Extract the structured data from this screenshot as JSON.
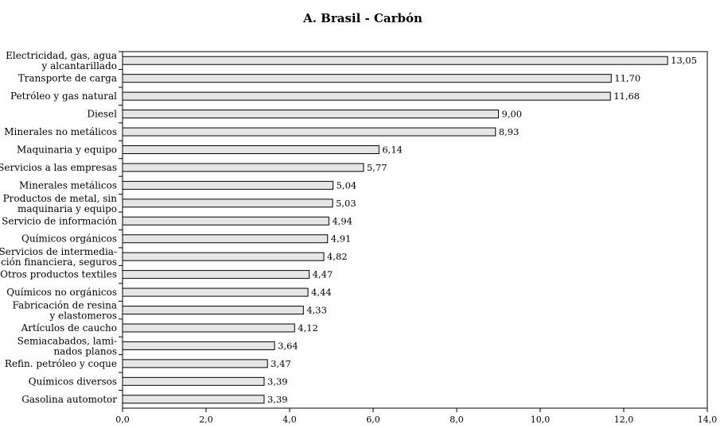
{
  "chart_data": {
    "type": "bar",
    "orientation": "horizontal",
    "title": "A. Brasil - Carbón",
    "xlabel": "",
    "ylabel": "",
    "xlim": [
      0,
      14
    ],
    "grid": false,
    "legend": "none",
    "bar_color": "#e6e6e6",
    "x_ticks": [
      "0,0",
      "2,0",
      "4,0",
      "6,0",
      "8,0",
      "10,0",
      "12,0",
      "14,0"
    ],
    "categories": [
      [
        "Electricidad, gas, agua",
        "y alcantarillado"
      ],
      [
        "Transporte de carga"
      ],
      [
        "Petróleo y gas natural"
      ],
      [
        "Diesel"
      ],
      [
        "Minerales no metálicos"
      ],
      [
        "Maquinaria y equipo"
      ],
      [
        "Servicios a las empresas"
      ],
      [
        "Minerales metálicos"
      ],
      [
        "Productos de metal, sin",
        "maquinaria y equipo"
      ],
      [
        "Servicio de información"
      ],
      [
        "Químicos orgánicos"
      ],
      [
        "Servicios de intermedia-",
        "ción financiera, seguros"
      ],
      [
        "Otros productos textiles"
      ],
      [
        "Químicos no orgánicos"
      ],
      [
        "Fabricación de resina",
        "y elastomeros"
      ],
      [
        "Artículos de caucho"
      ],
      [
        "Semiacabados, lami-",
        "nados planos"
      ],
      [
        "Refin. petróleo y coque"
      ],
      [
        "Químicos diversos"
      ],
      [
        "Gasolina automotor"
      ]
    ],
    "values": [
      13.05,
      11.7,
      11.68,
      9.0,
      8.93,
      6.14,
      5.77,
      5.04,
      5.03,
      4.94,
      4.91,
      4.82,
      4.47,
      4.44,
      4.33,
      4.12,
      3.64,
      3.47,
      3.39,
      3.39
    ],
    "value_labels": [
      "13,05",
      "11,70",
      "11,68",
      "9,00",
      "8,93",
      "6,14",
      "5,77",
      "5,04",
      "5,03",
      "4,94",
      "4,91",
      "4,82",
      "4,47",
      "4,44",
      "4,33",
      "4,12",
      "3,64",
      "3,47",
      "3,39",
      "3,39"
    ]
  }
}
